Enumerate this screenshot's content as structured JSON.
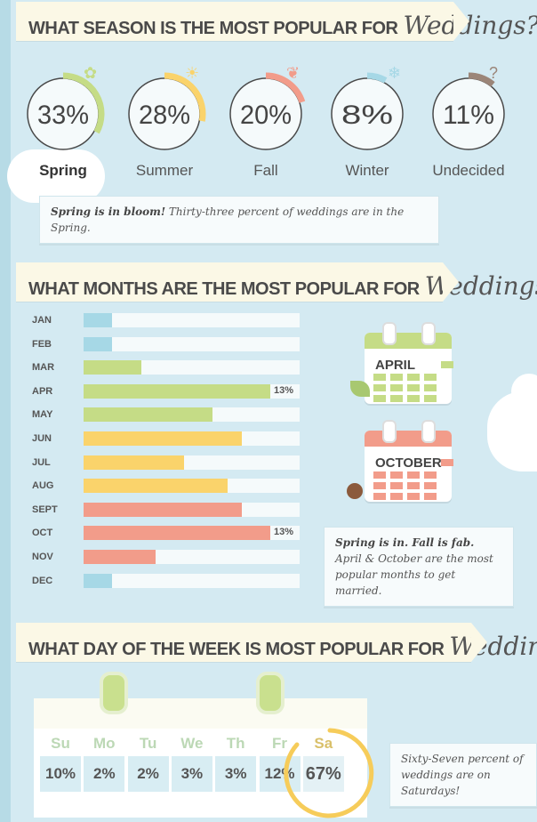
{
  "sections": {
    "season_title": "WHAT SEASON IS THE MOST POPULAR FOR",
    "months_title": "WHAT MONTHS ARE THE MOST POPULAR FOR",
    "day_title": "WHAT DAY OF THE WEEK IS MOST POPULAR FOR",
    "script_word": "Weddings?"
  },
  "season_note": {
    "bold": "Spring is in bloom!",
    "rest": " Thirty-three percent of weddings are in the Spring."
  },
  "months_note": {
    "bold": "Spring is in. Fall is fab.",
    "rest": " April & October are the most popular months to get married."
  },
  "day_note": "Sixty-Seven percent of weddings are on Saturdays!",
  "calendars": {
    "april": "APRIL",
    "october": "OCTOBER"
  },
  "colors": {
    "spring": "#c5dc86",
    "summer": "#fad36b",
    "fall": "#f29c8a",
    "winter": "#a6d8e6",
    "undecided": "#9b8578",
    "background": "#d4eaf2"
  },
  "chart_data": [
    {
      "type": "pie",
      "categories": [
        "Spring",
        "Summer",
        "Fall",
        "Winter",
        "Undecided"
      ],
      "values": [
        33,
        28,
        20,
        8,
        11
      ],
      "labels": [
        "33%",
        "28%",
        "20%",
        "8%",
        "11%"
      ],
      "icons": [
        "flower-icon",
        "sun-icon",
        "leaf-icon",
        "snowflake-icon",
        "question-icon"
      ]
    },
    {
      "type": "bar",
      "categories": [
        "JAN",
        "FEB",
        "MAR",
        "APR",
        "MAY",
        "JUN",
        "JUL",
        "AUG",
        "SEPT",
        "OCT",
        "NOV",
        "DEC"
      ],
      "values": [
        2,
        2,
        4,
        13,
        9,
        11,
        7,
        10,
        11,
        13,
        5,
        2
      ],
      "data_labels": {
        "APR": "13%",
        "OCT": "13%"
      },
      "ylim": [
        0,
        13
      ]
    },
    {
      "type": "table",
      "categories": [
        "Su",
        "Mo",
        "Tu",
        "We",
        "Th",
        "Fr",
        "Sa"
      ],
      "values": [
        10,
        2,
        2,
        3,
        3,
        12,
        67
      ],
      "labels": [
        "10%",
        "2%",
        "2%",
        "3%",
        "3%",
        "12%",
        "67%"
      ],
      "highlight": "Sa"
    }
  ]
}
